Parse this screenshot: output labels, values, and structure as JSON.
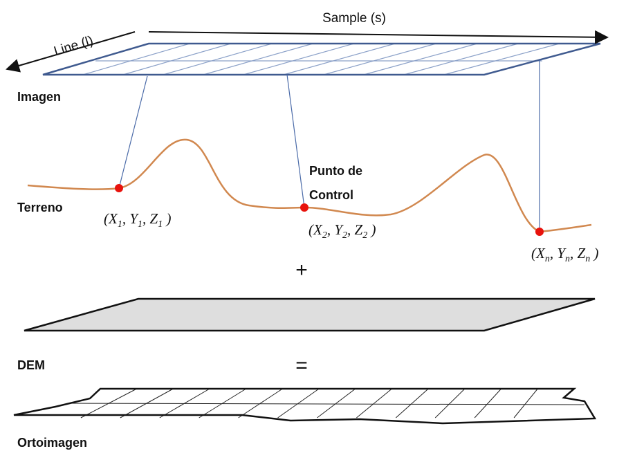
{
  "labels": {
    "sample": "Sample (s)",
    "line": "Line (l)",
    "imagen": "Imagen",
    "terreno": "Terreno",
    "control": [
      "Punto de",
      "Control"
    ],
    "plus": "+",
    "dem": "DEM",
    "equals": "=",
    "ortoimagen": "Ortoimagen"
  },
  "points": [
    {
      "parts": [
        "(X",
        "1",
        ", Y",
        "1",
        ", Z",
        "1",
        " )"
      ]
    },
    {
      "parts": [
        "(X",
        "2",
        ", Y",
        "2",
        ", Z",
        "2",
        " )"
      ]
    },
    {
      "parts": [
        "(X",
        "n",
        ", Y",
        "n",
        ", Z",
        "n",
        " )"
      ]
    }
  ]
}
